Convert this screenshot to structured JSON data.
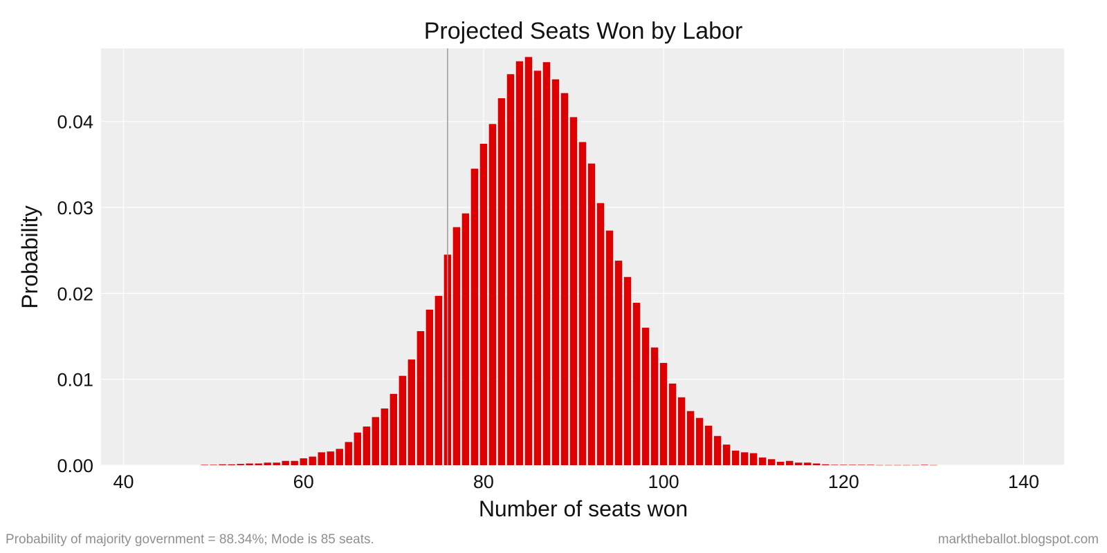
{
  "chart_data": {
    "type": "bar",
    "title": "Projected Seats Won by Labor",
    "xlabel": "Number of seats won",
    "ylabel": "Probability",
    "xlim": [
      37.5,
      144.5
    ],
    "ylim": [
      0,
      0.0485
    ],
    "xticks": [
      40,
      60,
      80,
      100,
      120,
      140
    ],
    "xtick_labels": [
      "40",
      "60",
      "80",
      "100",
      "120",
      "140"
    ],
    "yticks": [
      0,
      0.01,
      0.02,
      0.03,
      0.04
    ],
    "ytick_labels": [
      "0.00",
      "0.01",
      "0.02",
      "0.03",
      "0.04"
    ],
    "grid": true,
    "bar_color": "#dd0000",
    "background_color": "#eeeeee",
    "reference_line": {
      "x": 76,
      "color": "#999999"
    },
    "x": [
      49,
      50,
      51,
      52,
      53,
      54,
      55,
      56,
      57,
      58,
      59,
      60,
      61,
      62,
      63,
      64,
      65,
      66,
      67,
      68,
      69,
      70,
      71,
      72,
      73,
      74,
      75,
      76,
      77,
      78,
      79,
      80,
      81,
      82,
      83,
      84,
      85,
      86,
      87,
      88,
      89,
      90,
      91,
      92,
      93,
      94,
      95,
      96,
      97,
      98,
      99,
      100,
      101,
      102,
      103,
      104,
      105,
      106,
      107,
      108,
      109,
      110,
      111,
      112,
      113,
      114,
      115,
      116,
      117,
      118,
      119,
      120,
      121,
      122,
      123,
      124,
      125,
      126,
      127,
      128,
      129,
      130
    ],
    "values": [
      5e-05,
      5e-05,
      0.0001,
      0.0001,
      0.00015,
      0.0002,
      0.0002,
      0.0003,
      0.0003,
      0.0005,
      0.0005,
      0.0008,
      0.001,
      0.0015,
      0.0016,
      0.0019,
      0.0027,
      0.0038,
      0.0045,
      0.0056,
      0.0066,
      0.0083,
      0.0104,
      0.0123,
      0.0156,
      0.0181,
      0.0197,
      0.0245,
      0.0277,
      0.0293,
      0.0345,
      0.0374,
      0.0397,
      0.0427,
      0.0455,
      0.047,
      0.0475,
      0.0459,
      0.0469,
      0.0449,
      0.0433,
      0.0405,
      0.0376,
      0.0351,
      0.0305,
      0.0273,
      0.0238,
      0.0219,
      0.0189,
      0.016,
      0.0137,
      0.0119,
      0.0095,
      0.0079,
      0.0063,
      0.0055,
      0.0046,
      0.0034,
      0.0024,
      0.0017,
      0.0015,
      0.0014,
      0.0009,
      0.0007,
      0.0004,
      0.0005,
      0.0003,
      0.0003,
      0.0002,
      0.0001,
      5e-05,
      5e-05,
      5e-05,
      5e-05,
      5e-05,
      2e-05,
      2e-05,
      2e-05,
      2e-05,
      2e-05,
      5e-05,
      2e-05
    ]
  },
  "footnotes": {
    "left": "Probability of majority government = 88.34%; Mode is 85 seats.",
    "right": "marktheballot.blogspot.com"
  }
}
